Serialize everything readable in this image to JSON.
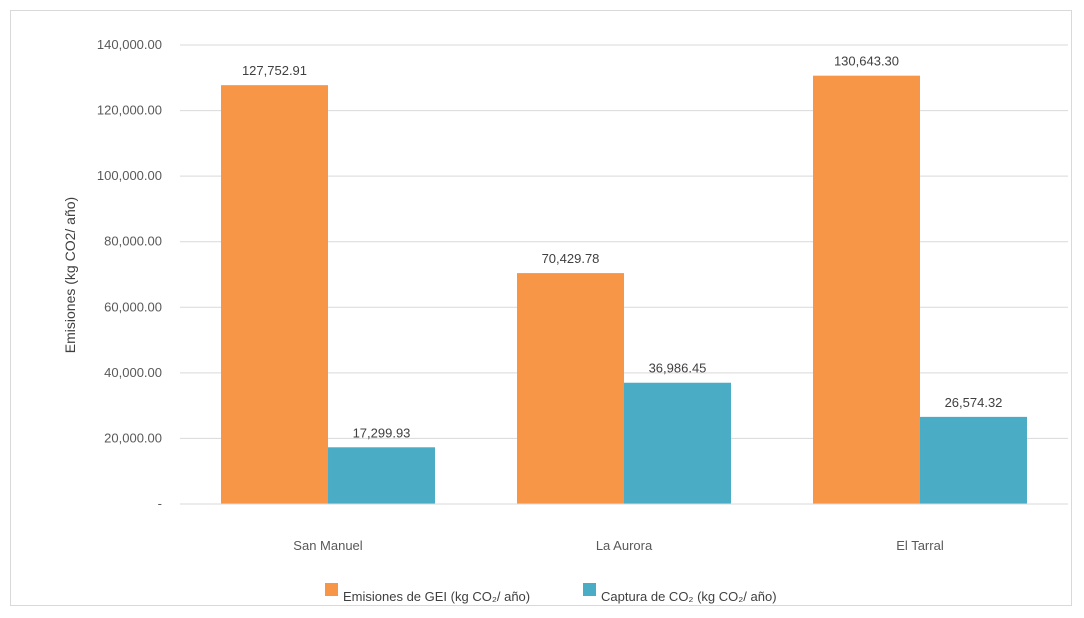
{
  "chart_data": {
    "type": "bar",
    "title": "",
    "xlabel": "",
    "ylabel": "Emisiones (kg CO2/ año)",
    "ylim": [
      0,
      140000
    ],
    "y_ticks": [
      "-",
      "20,000.00",
      "40,000.00",
      "60,000.00",
      "80,000.00",
      "100,000.00",
      "120,000.00",
      "140,000.00"
    ],
    "grid": true,
    "legend_position": "bottom",
    "categories": [
      "San Manuel",
      "La Aurora",
      "El Tarral"
    ],
    "series": [
      {
        "name": "Emisiones de GEI (kg CO₂/ año)",
        "color": "#f79646",
        "values": [
          127752.91,
          70429.78,
          130643.3
        ],
        "labels": [
          "127,752.91",
          "70,429.78",
          "130,643.30"
        ]
      },
      {
        "name": "Captura de CO₂ (kg CO₂/ año)",
        "color": "#4bacc6",
        "values": [
          17299.93,
          36986.45,
          26574.32
        ],
        "labels": [
          "17,299.93",
          "36,986.45",
          "26,574.32"
        ]
      }
    ]
  }
}
